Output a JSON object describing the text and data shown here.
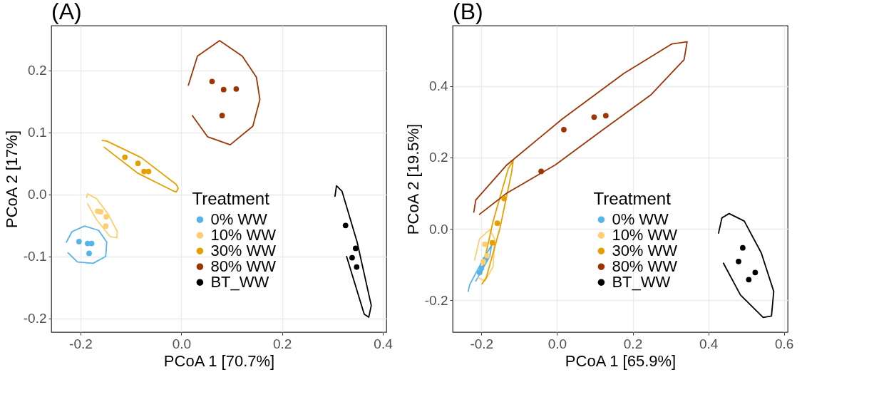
{
  "chart_data": [
    {
      "type": "scatter",
      "title": "(A)",
      "xlabel": "PCoA 1   [70.7%]",
      "ylabel": "PCoA 2   [17%]",
      "legend_title": "Treatment",
      "legend": "bottom right",
      "grid": true,
      "marker": "circle",
      "xlim": [
        -0.258,
        0.407
      ],
      "ylim": [
        -0.222,
        0.272
      ],
      "xticks": [
        -0.2,
        {
          "value": 0,
          "label": "0.0"
        },
        0.2,
        0.4
      ],
      "yticks": [
        -0.2,
        -0.1,
        {
          "value": 0,
          "label": "0.0"
        },
        0.1,
        0.2
      ],
      "series": [
        {
          "name": "0% WW",
          "color": "#56b4e9",
          "x": [
            -0.203,
            -0.186,
            -0.178,
            -0.183
          ],
          "values": [
            -0.076,
            -0.079,
            -0.079,
            -0.095
          ]
        },
        {
          "name": "10% WW",
          "color": "#fdcf72",
          "x": [
            -0.166,
            -0.16,
            -0.149,
            -0.15
          ],
          "values": [
            -0.027,
            -0.028,
            -0.036,
            -0.051
          ]
        },
        {
          "name": "30% WW",
          "color": "#e69f00",
          "x": [
            -0.112,
            -0.086,
            -0.074,
            -0.065
          ],
          "values": [
            0.06,
            0.05,
            0.037,
            0.037
          ]
        },
        {
          "name": "80% WW",
          "color": "#9c3604",
          "x": [
            0.061,
            0.084,
            0.109,
            0.081
          ],
          "values": [
            0.182,
            0.169,
            0.17,
            0.127
          ]
        },
        {
          "name": "BT_WW",
          "color": "#000000",
          "x": [
            0.326,
            0.346,
            0.339,
            0.348
          ],
          "values": [
            -0.05,
            -0.087,
            -0.102,
            -0.117
          ]
        },
        {
          "type": "line",
          "marker": "none",
          "color": "#56b4e9",
          "x": [
            -0.228,
            -0.217,
            -0.192,
            -0.164,
            -0.148,
            -0.15,
            -0.175,
            -0.206,
            -0.225
          ],
          "values": [
            -0.077,
            -0.06,
            -0.051,
            -0.058,
            -0.077,
            -0.1,
            -0.111,
            -0.109,
            -0.094
          ]
        },
        {
          "type": "line",
          "marker": "none",
          "color": "#fdcf72",
          "x": [
            -0.188,
            -0.186,
            -0.168,
            -0.145,
            -0.127,
            -0.128,
            -0.141,
            -0.168,
            -0.186
          ],
          "values": [
            -0.005,
            0.001,
            -0.007,
            -0.032,
            -0.06,
            -0.07,
            -0.068,
            -0.041,
            -0.015
          ]
        },
        {
          "type": "line",
          "marker": "none",
          "color": "#e69f00",
          "x": [
            -0.157,
            -0.148,
            -0.079,
            -0.01,
            -0.006,
            -0.01,
            -0.017,
            -0.086,
            -0.153
          ],
          "values": [
            0.087,
            0.086,
            0.059,
            0.016,
            0.01,
            0.004,
            0.006,
            0.034,
            0.076
          ]
        },
        {
          "type": "line",
          "marker": "none",
          "color": "#9c3604",
          "x": [
            0.014,
            0.032,
            0.076,
            0.121,
            0.149,
            0.156,
            0.142,
            0.097,
            0.052,
            0.022
          ],
          "values": [
            0.176,
            0.223,
            0.248,
            0.223,
            0.189,
            0.153,
            0.11,
            0.08,
            0.093,
            0.127
          ]
        },
        {
          "type": "line",
          "marker": "none",
          "color": "#000000",
          "x": [
            0.305,
            0.308,
            0.319,
            0.349,
            0.377,
            0.372,
            0.363,
            0.328
          ],
          "values": [
            -0.003,
            0.014,
            0.005,
            -0.077,
            -0.179,
            -0.198,
            -0.193,
            -0.1
          ]
        }
      ]
    },
    {
      "type": "scatter",
      "title": "(B)",
      "xlabel": "PCoA 1   [65.9%]",
      "ylabel": "PCoA 2   [19.5%]",
      "legend_title": "Treatment",
      "legend": "bottom right",
      "grid": true,
      "marker": "circle",
      "xlim": [
        -0.276,
        0.61
      ],
      "ylim": [
        -0.289,
        0.569
      ],
      "xticks": [
        -0.2,
        {
          "value": 0,
          "label": "0.0"
        },
        0.2,
        0.4,
        0.6
      ],
      "yticks": [
        -0.2,
        {
          "value": 0,
          "label": "0.0"
        },
        0.2,
        0.4
      ],
      "series": [
        {
          "name": "0% WW",
          "color": "#56b4e9",
          "x": [
            -0.205,
            -0.2,
            -0.19
          ],
          "values": [
            -0.122,
            -0.11,
            -0.085
          ]
        },
        {
          "name": "10% WW",
          "color": "#fdcf72",
          "x": [
            -0.191,
            -0.195,
            -0.185
          ],
          "values": [
            -0.043,
            -0.091,
            -0.075
          ]
        },
        {
          "name": "30% WW",
          "color": "#e69f00",
          "x": [
            -0.14,
            -0.158,
            -0.171
          ],
          "values": [
            0.085,
            0.016,
            -0.039
          ]
        },
        {
          "name": "80% WW",
          "color": "#9c3604",
          "x": [
            -0.042,
            0.018,
            0.098,
            0.129
          ],
          "values": [
            0.161,
            0.278,
            0.313,
            0.317
          ]
        },
        {
          "name": "BT_WW",
          "color": "#000000",
          "x": [
            0.491,
            0.48,
            0.524,
            0.507
          ],
          "values": [
            -0.053,
            -0.091,
            -0.122,
            -0.142
          ]
        },
        {
          "type": "line",
          "marker": "none",
          "color": "#56b4e9",
          "x": [
            -0.235,
            -0.231,
            -0.196,
            -0.173,
            -0.178,
            -0.215
          ],
          "values": [
            -0.175,
            -0.156,
            -0.087,
            -0.045,
            -0.077,
            -0.146
          ]
        },
        {
          "type": "line",
          "marker": "none",
          "color": "#fdcf72",
          "x": [
            -0.218,
            -0.205,
            -0.178,
            -0.165,
            -0.169,
            -0.191,
            -0.209
          ],
          "values": [
            -0.087,
            -0.028,
            -0.002,
            -0.028,
            -0.106,
            -0.146,
            -0.136
          ]
        },
        {
          "type": "line",
          "marker": "none",
          "color": "#e69f00",
          "x": [
            -0.2,
            -0.169,
            -0.129,
            -0.116,
            -0.12,
            -0.151,
            -0.187,
            -0.198
          ],
          "values": [
            -0.126,
            0.022,
            0.169,
            0.191,
            0.159,
            0.002,
            -0.136,
            -0.154
          ]
        },
        {
          "type": "line",
          "marker": "none",
          "color": "#9c3604",
          "x": [
            -0.22,
            -0.215,
            -0.133,
            0.013,
            0.176,
            0.304,
            0.344,
            0.336,
            0.249,
            0.122,
            -0.005,
            -0.133,
            -0.205
          ],
          "values": [
            0.047,
            0.081,
            0.179,
            0.307,
            0.435,
            0.518,
            0.524,
            0.474,
            0.376,
            0.278,
            0.179,
            0.1,
            0.041
          ]
        },
        {
          "type": "line",
          "marker": "none",
          "color": "#000000",
          "x": [
            0.427,
            0.436,
            0.455,
            0.495,
            0.54,
            0.573,
            0.567,
            0.545,
            0.485,
            0.44
          ],
          "values": [
            -0.012,
            0.031,
            0.043,
            0.022,
            -0.067,
            -0.175,
            -0.244,
            -0.248,
            -0.185,
            -0.096
          ]
        }
      ]
    }
  ]
}
